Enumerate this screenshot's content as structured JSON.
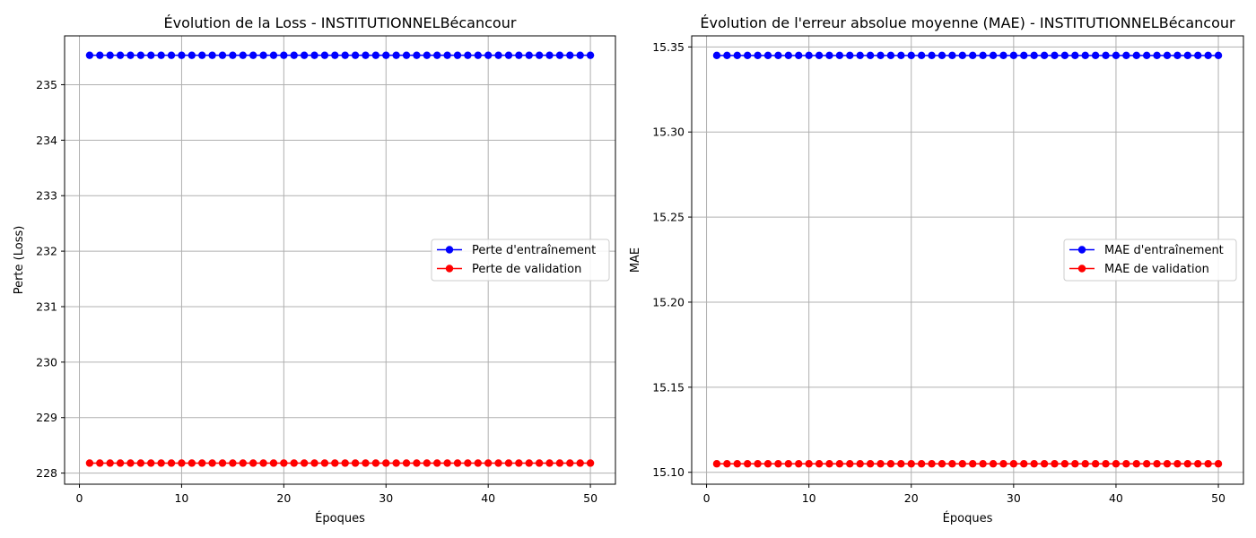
{
  "chart_data": [
    {
      "type": "line",
      "title": "Évolution de la Loss - INSTITUTIONNELBécancour",
      "xlabel": "Époques",
      "ylabel": "Perte (Loss)",
      "xlim": [
        -1.45,
        52.45
      ],
      "ylim": [
        227.8,
        235.88
      ],
      "xticks": [
        0,
        10,
        20,
        30,
        40,
        50
      ],
      "yticks": [
        228,
        229,
        230,
        231,
        232,
        233,
        234,
        235
      ],
      "tick_decimals": 0,
      "grid": true,
      "legend_position": "center-right",
      "x": [
        1,
        2,
        3,
        4,
        5,
        6,
        7,
        8,
        9,
        10,
        11,
        12,
        13,
        14,
        15,
        16,
        17,
        18,
        19,
        20,
        21,
        22,
        23,
        24,
        25,
        26,
        27,
        28,
        29,
        30,
        31,
        32,
        33,
        34,
        35,
        36,
        37,
        38,
        39,
        40,
        41,
        42,
        43,
        44,
        45,
        46,
        47,
        48,
        49,
        50
      ],
      "series": [
        {
          "name": "Perte d'entraînement",
          "color": "#0000ff",
          "value": 235.53
        },
        {
          "name": "Perte de validation",
          "color": "#ff0000",
          "value": 228.18
        }
      ]
    },
    {
      "type": "line",
      "title": "Évolution de l'erreur absolue moyenne (MAE) - INSTITUTIONNELBécancour",
      "xlabel": "Époques",
      "ylabel": "MAE",
      "xlim": [
        -1.45,
        52.45
      ],
      "ylim": [
        15.093,
        15.3565
      ],
      "xticks": [
        0,
        10,
        20,
        30,
        40,
        50
      ],
      "yticks": [
        15.1,
        15.15,
        15.2,
        15.25,
        15.3,
        15.35
      ],
      "tick_decimals": 2,
      "grid": true,
      "legend_position": "center-right",
      "x": [
        1,
        2,
        3,
        4,
        5,
        6,
        7,
        8,
        9,
        10,
        11,
        12,
        13,
        14,
        15,
        16,
        17,
        18,
        19,
        20,
        21,
        22,
        23,
        24,
        25,
        26,
        27,
        28,
        29,
        30,
        31,
        32,
        33,
        34,
        35,
        36,
        37,
        38,
        39,
        40,
        41,
        42,
        43,
        44,
        45,
        46,
        47,
        48,
        49,
        50
      ],
      "series": [
        {
          "name": "MAE d'entraînement",
          "color": "#0000ff",
          "value": 15.345
        },
        {
          "name": "MAE de validation",
          "color": "#ff0000",
          "value": 15.105
        }
      ]
    }
  ]
}
